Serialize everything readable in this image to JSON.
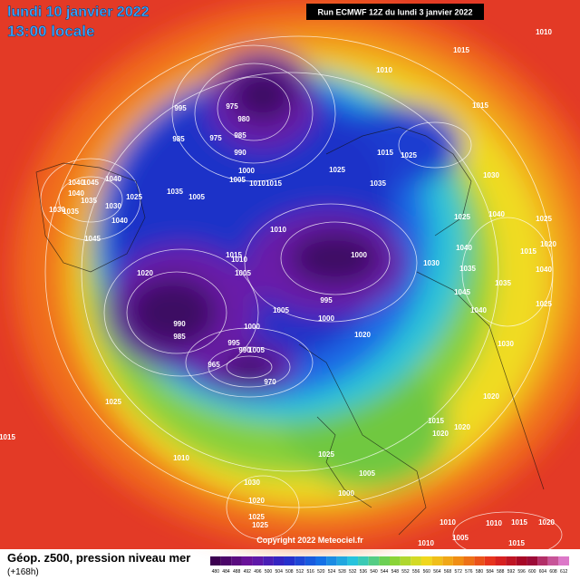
{
  "header": {
    "title": "lundi 10 janvier 2022",
    "subtitle": "13:00 locale",
    "run": "Run ECMWF 12Z du lundi 3 janvier 2022"
  },
  "footer": {
    "label": "Géop. z500, pression niveau mer",
    "lead": "(+168h)",
    "copyright": "Copyright 2022 Meteociel.fr",
    "scale": [
      480,
      484,
      488,
      492,
      496,
      500,
      504,
      508,
      512,
      516,
      520,
      524,
      528,
      532,
      536,
      540,
      544,
      548,
      552,
      556,
      560,
      564,
      568,
      572,
      576,
      580,
      584,
      588,
      592,
      596,
      600,
      604,
      608,
      612
    ]
  },
  "isobar_labels": [
    1010,
    1015,
    1010,
    995,
    975,
    980,
    985,
    975,
    985,
    990,
    1015,
    1000,
    1005,
    1010,
    1015,
    1025,
    1015,
    1025,
    1035,
    1030,
    1035,
    1005,
    1040,
    1045,
    1040,
    1040,
    1035,
    1025,
    1030,
    1030,
    1035,
    1040,
    1045,
    1010,
    1000,
    1015,
    1010,
    1005,
    1030,
    1040,
    1035,
    1025,
    1040,
    1015,
    1040,
    1035,
    1045,
    1025,
    1020,
    995,
    1005,
    1000,
    1020,
    990,
    985,
    1000,
    995,
    990,
    1005,
    965,
    970,
    1040,
    1030,
    1025,
    1020,
    1015,
    1020,
    1020,
    1015,
    1010,
    1025,
    1005,
    1000,
    1030,
    1020,
    1025,
    1025,
    1010,
    1005,
    1010,
    1015,
    1020,
    1010,
    1015,
    1025,
    1020
  ]
}
